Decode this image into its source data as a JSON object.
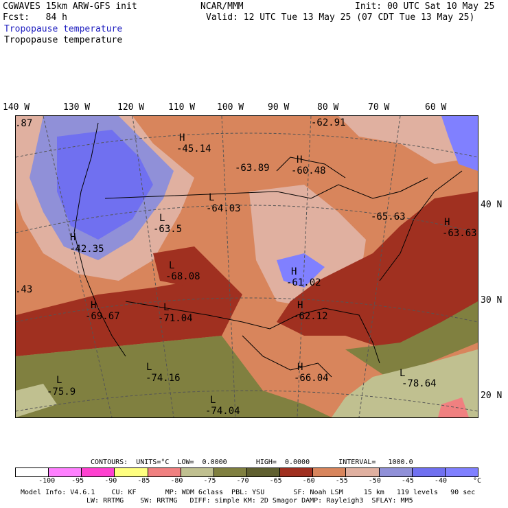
{
  "header": {
    "title_left": "CGWAVES 15km ARW-GFS init",
    "center": "NCAR/MMM",
    "init": "Init: 00 UTC Sat 10 May 25",
    "fcst": "Fcst:   84 h",
    "valid": "Valid: 12 UTC Tue 13 May 25 (07 CDT Tue 13 May 25)",
    "field_blue": "Tropopause temperature",
    "field_black": "Tropopause temperature"
  },
  "lon_labels": [
    "140 W",
    "130 W",
    "120 W",
    "110 W",
    "100 W",
    "90 W",
    "80 W",
    "70 W",
    "60 W"
  ],
  "lat_labels": [
    "40 N",
    "30 N",
    "20 N"
  ],
  "map": {
    "highs": [
      {
        "mark": "H",
        "value": "-45.14"
      },
      {
        "mark": "H",
        "value": "-60.48"
      },
      {
        "mark": "H",
        "value": "-42.35"
      },
      {
        "mark": "H",
        "value": "-61.02"
      },
      {
        "mark": "H",
        "value": "-62.12"
      },
      {
        "mark": "H",
        "value": "-66.04"
      },
      {
        "mark": "H",
        "value": "-63.63"
      },
      {
        "mark": "H",
        "value": "-69.67"
      }
    ],
    "lows": [
      {
        "mark": "L",
        "value": "-64.03"
      },
      {
        "mark": "L",
        "value": "-63.5"
      },
      {
        "mark": "L",
        "value": "-68.08"
      },
      {
        "mark": "L",
        "value": "-71.04"
      },
      {
        "mark": "L",
        "value": "-74.16"
      },
      {
        "mark": "L",
        "value": "-75.9"
      },
      {
        "mark": "L",
        "value": "-74.04"
      },
      {
        "mark": "L",
        "value": "-78.64"
      }
    ],
    "extra_values": [
      "-62.91",
      "-63.89",
      "-65.63",
      ".87",
      ".43"
    ]
  },
  "contours_line": "CONTOURS:  UNITS=°C  LOW=  0.0000       HIGH=  0.0000       INTERVAL=   1000.0",
  "colorbar": {
    "colors": [
      "#ffffff",
      "#ff80ff",
      "#ff40d0",
      "#ffff80",
      "#f08080",
      "#c0c090",
      "#808040",
      "#606030",
      "#a03020",
      "#d8855c",
      "#e0b0a0",
      "#9090d8",
      "#7070f0",
      "#8080ff"
    ],
    "labels": [
      "-100",
      "-95",
      "-90",
      "-85",
      "-80",
      "-75",
      "-70",
      "-65",
      "-60",
      "-55",
      "-50",
      "-45",
      "-40",
      "°C"
    ]
  },
  "footer": {
    "line1": "Model Info: V4.6.1    CU: KF       MP: WDM 6class  PBL: YSU       SF: Noah LSM     15 km   119 levels   90 sec",
    "line2": "LW: RRTMG    SW: RRTMG   DIFF: simple KM: 2D Smagor DAMP: Rayleigh3  SFLAY: MM5"
  }
}
